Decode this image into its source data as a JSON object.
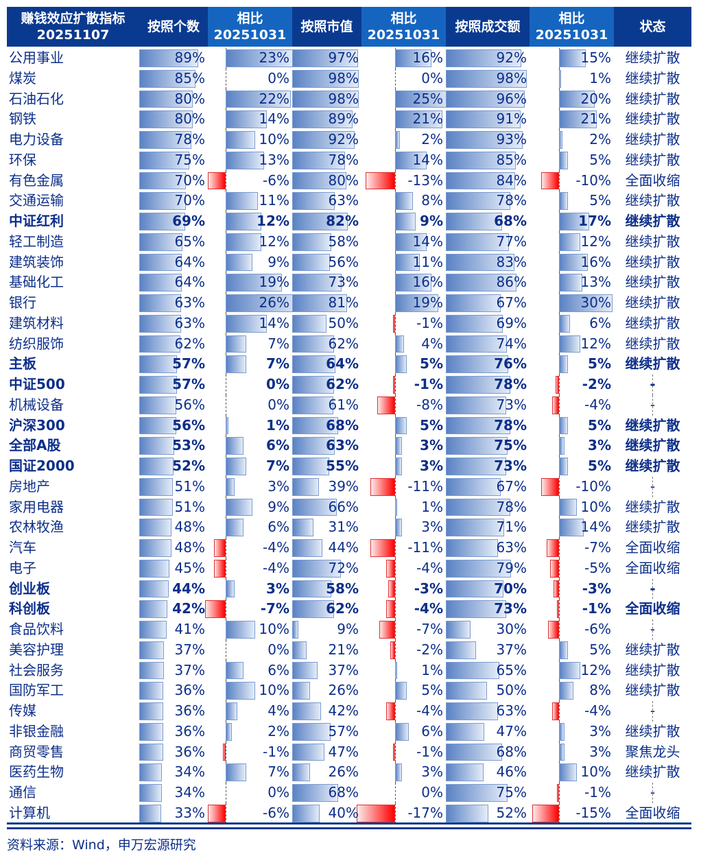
{
  "header": {
    "title_line1": "赚钱效应扩散指标",
    "title_line2": "20251107",
    "col_count": "按照个数",
    "col_chg_label": "相比",
    "col_chg_date": "20251031",
    "col_mcap": "按照市值",
    "col_amt": "按照成交额",
    "col_status": "状态"
  },
  "colors": {
    "header_dark": "#0a3a8f",
    "header_light": "#1565c0",
    "positive_bar": "#5a82c4",
    "negative_bar": "#ff0000",
    "text": "#0d2f8a"
  },
  "footer": {
    "source": "资料来源：Wind，申万宏源研究"
  },
  "rows": [
    {
      "name": "公用事业",
      "count": "89%",
      "chg1": "23%",
      "mcap": "97%",
      "chg2": "16%",
      "amt": "92%",
      "chg3": "15%",
      "status": "继续扩散",
      "bold": false
    },
    {
      "name": "煤炭",
      "count": "85%",
      "chg1": "0%",
      "mcap": "98%",
      "chg2": "0%",
      "amt": "98%",
      "chg3": "1%",
      "status": "继续扩散",
      "bold": false
    },
    {
      "name": "石油石化",
      "count": "80%",
      "chg1": "22%",
      "mcap": "98%",
      "chg2": "25%",
      "amt": "96%",
      "chg3": "20%",
      "status": "继续扩散",
      "bold": false
    },
    {
      "name": "钢铁",
      "count": "80%",
      "chg1": "14%",
      "mcap": "89%",
      "chg2": "21%",
      "amt": "91%",
      "chg3": "21%",
      "status": "继续扩散",
      "bold": false
    },
    {
      "name": "电力设备",
      "count": "78%",
      "chg1": "10%",
      "mcap": "92%",
      "chg2": "2%",
      "amt": "93%",
      "chg3": "2%",
      "status": "继续扩散",
      "bold": false
    },
    {
      "name": "环保",
      "count": "75%",
      "chg1": "13%",
      "mcap": "78%",
      "chg2": "14%",
      "amt": "85%",
      "chg3": "5%",
      "status": "继续扩散",
      "bold": false
    },
    {
      "name": "有色金属",
      "count": "70%",
      "chg1": "-6%",
      "mcap": "80%",
      "chg2": "-13%",
      "amt": "84%",
      "chg3": "-10%",
      "status": "全面收缩",
      "bold": false
    },
    {
      "name": "交通运输",
      "count": "70%",
      "chg1": "11%",
      "mcap": "63%",
      "chg2": "8%",
      "amt": "78%",
      "chg3": "5%",
      "status": "继续扩散",
      "bold": false
    },
    {
      "name": "中证红利",
      "count": "69%",
      "chg1": "12%",
      "mcap": "82%",
      "chg2": "9%",
      "amt": "68%",
      "chg3": "17%",
      "status": "继续扩散",
      "bold": true
    },
    {
      "name": "轻工制造",
      "count": "65%",
      "chg1": "12%",
      "mcap": "58%",
      "chg2": "14%",
      "amt": "77%",
      "chg3": "12%",
      "status": "继续扩散",
      "bold": false
    },
    {
      "name": "建筑装饰",
      "count": "64%",
      "chg1": "9%",
      "mcap": "56%",
      "chg2": "11%",
      "amt": "83%",
      "chg3": "16%",
      "status": "继续扩散",
      "bold": false
    },
    {
      "name": "基础化工",
      "count": "64%",
      "chg1": "19%",
      "mcap": "73%",
      "chg2": "16%",
      "amt": "86%",
      "chg3": "13%",
      "status": "继续扩散",
      "bold": false
    },
    {
      "name": "银行",
      "count": "63%",
      "chg1": "26%",
      "mcap": "81%",
      "chg2": "19%",
      "amt": "67%",
      "chg3": "30%",
      "status": "继续扩散",
      "bold": false
    },
    {
      "name": "建筑材料",
      "count": "63%",
      "chg1": "14%",
      "mcap": "50%",
      "chg2": "-1%",
      "amt": "69%",
      "chg3": "6%",
      "status": "继续扩散",
      "bold": false
    },
    {
      "name": "纺织服饰",
      "count": "62%",
      "chg1": "7%",
      "mcap": "62%",
      "chg2": "4%",
      "amt": "74%",
      "chg3": "12%",
      "status": "继续扩散",
      "bold": false
    },
    {
      "name": "主板",
      "count": "57%",
      "chg1": "7%",
      "mcap": "64%",
      "chg2": "5%",
      "amt": "76%",
      "chg3": "5%",
      "status": "继续扩散",
      "bold": true
    },
    {
      "name": "中证500",
      "count": "57%",
      "chg1": "0%",
      "mcap": "62%",
      "chg2": "-1%",
      "amt": "78%",
      "chg3": "-2%",
      "status": "-",
      "bold": true
    },
    {
      "name": "机械设备",
      "count": "56%",
      "chg1": "0%",
      "mcap": "61%",
      "chg2": "-8%",
      "amt": "73%",
      "chg3": "-4%",
      "status": "-",
      "bold": false
    },
    {
      "name": "沪深300",
      "count": "56%",
      "chg1": "1%",
      "mcap": "68%",
      "chg2": "5%",
      "amt": "78%",
      "chg3": "5%",
      "status": "继续扩散",
      "bold": true
    },
    {
      "name": "全部A股",
      "count": "53%",
      "chg1": "6%",
      "mcap": "63%",
      "chg2": "3%",
      "amt": "75%",
      "chg3": "3%",
      "status": "继续扩散",
      "bold": true
    },
    {
      "name": "国证2000",
      "count": "52%",
      "chg1": "7%",
      "mcap": "55%",
      "chg2": "3%",
      "amt": "73%",
      "chg3": "5%",
      "status": "继续扩散",
      "bold": true
    },
    {
      "name": "房地产",
      "count": "51%",
      "chg1": "3%",
      "mcap": "39%",
      "chg2": "-11%",
      "amt": "67%",
      "chg3": "-10%",
      "status": "-",
      "bold": false
    },
    {
      "name": "家用电器",
      "count": "51%",
      "chg1": "9%",
      "mcap": "66%",
      "chg2": "1%",
      "amt": "78%",
      "chg3": "10%",
      "status": "继续扩散",
      "bold": false
    },
    {
      "name": "农林牧渔",
      "count": "48%",
      "chg1": "6%",
      "mcap": "31%",
      "chg2": "3%",
      "amt": "71%",
      "chg3": "14%",
      "status": "继续扩散",
      "bold": false
    },
    {
      "name": "汽车",
      "count": "48%",
      "chg1": "-4%",
      "mcap": "44%",
      "chg2": "-11%",
      "amt": "63%",
      "chg3": "-7%",
      "status": "全面收缩",
      "bold": false
    },
    {
      "name": "电子",
      "count": "45%",
      "chg1": "-4%",
      "mcap": "72%",
      "chg2": "-4%",
      "amt": "79%",
      "chg3": "-5%",
      "status": "全面收缩",
      "bold": false
    },
    {
      "name": "创业板",
      "count": "44%",
      "chg1": "3%",
      "mcap": "58%",
      "chg2": "-3%",
      "amt": "70%",
      "chg3": "-3%",
      "status": "-",
      "bold": true
    },
    {
      "name": "科创板",
      "count": "42%",
      "chg1": "-7%",
      "mcap": "62%",
      "chg2": "-4%",
      "amt": "73%",
      "chg3": "-1%",
      "status": "全面收缩",
      "bold": true
    },
    {
      "name": "食品饮料",
      "count": "41%",
      "chg1": "10%",
      "mcap": "9%",
      "chg2": "-7%",
      "amt": "30%",
      "chg3": "-6%",
      "status": "-",
      "bold": false
    },
    {
      "name": "美容护理",
      "count": "37%",
      "chg1": "0%",
      "mcap": "21%",
      "chg2": "-2%",
      "amt": "37%",
      "chg3": "5%",
      "status": "继续扩散",
      "bold": false
    },
    {
      "name": "社会服务",
      "count": "37%",
      "chg1": "6%",
      "mcap": "37%",
      "chg2": "1%",
      "amt": "65%",
      "chg3": "12%",
      "status": "继续扩散",
      "bold": false
    },
    {
      "name": "国防军工",
      "count": "36%",
      "chg1": "10%",
      "mcap": "26%",
      "chg2": "5%",
      "amt": "50%",
      "chg3": "8%",
      "status": "继续扩散",
      "bold": false
    },
    {
      "name": "传媒",
      "count": "36%",
      "chg1": "4%",
      "mcap": "42%",
      "chg2": "-4%",
      "amt": "63%",
      "chg3": "-4%",
      "status": "-",
      "bold": false
    },
    {
      "name": "非银金融",
      "count": "36%",
      "chg1": "2%",
      "mcap": "57%",
      "chg2": "6%",
      "amt": "47%",
      "chg3": "3%",
      "status": "继续扩散",
      "bold": false
    },
    {
      "name": "商贸零售",
      "count": "36%",
      "chg1": "-1%",
      "mcap": "47%",
      "chg2": "-1%",
      "amt": "68%",
      "chg3": "3%",
      "status": "聚焦龙头",
      "bold": false
    },
    {
      "name": "医药生物",
      "count": "34%",
      "chg1": "7%",
      "mcap": "26%",
      "chg2": "3%",
      "amt": "46%",
      "chg3": "10%",
      "status": "继续扩散",
      "bold": false
    },
    {
      "name": "通信",
      "count": "34%",
      "chg1": "0%",
      "mcap": "68%",
      "chg2": "0%",
      "amt": "75%",
      "chg3": "-1%",
      "status": "-",
      "bold": false
    },
    {
      "name": "计算机",
      "count": "33%",
      "chg1": "-6%",
      "mcap": "40%",
      "chg2": "-17%",
      "amt": "52%",
      "chg3": "-15%",
      "status": "全面收缩",
      "bold": false
    }
  ],
  "chart_data": {
    "type": "table",
    "title": "赚钱效应扩散指标 20251107",
    "columns": [
      "赚钱效应扩散指标 20251107",
      "按照个数",
      "相比20251031",
      "按照市值",
      "相比20251031",
      "按照成交额",
      "相比20251031",
      "状态"
    ],
    "note": "data bars embedded in percentage columns; positive changes blue, negative red",
    "source": "资料来源：Wind，申万宏源研究"
  }
}
